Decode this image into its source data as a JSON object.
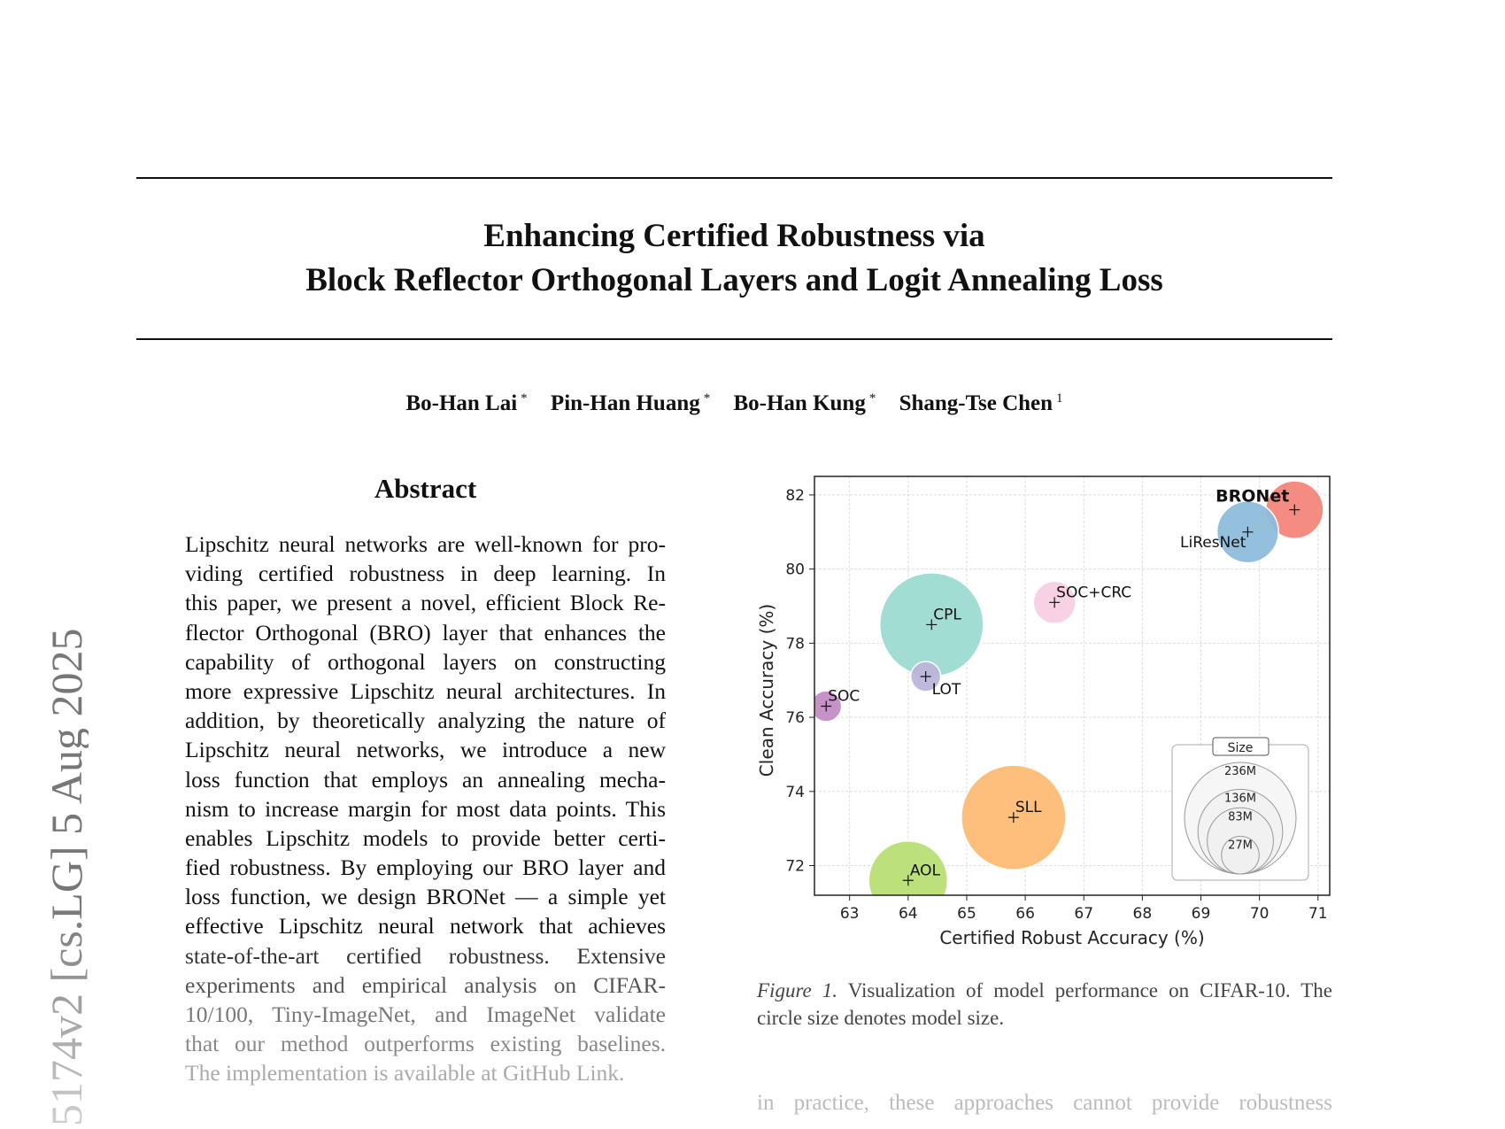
{
  "title": {
    "line1": "Enhancing Certified Robustness via",
    "line2": "Block Reflector Orthogonal Layers and Logit Annealing Loss"
  },
  "authors": [
    {
      "name": "Bo-Han Lai",
      "mark": "*"
    },
    {
      "name": "Pin-Han Huang",
      "mark": "*"
    },
    {
      "name": "Bo-Han Kung",
      "mark": "*"
    },
    {
      "name": "Shang-Tse Chen",
      "mark": "1"
    }
  ],
  "arxiv_stamp": "5174v2  [cs.LG]  5 Aug 2025",
  "abstract": {
    "heading": "Abstract",
    "lines": [
      "Lipschitz neural networks are well-known for pro-",
      "viding certified robustness in deep learning. In",
      "this paper, we present a novel, efficient Block Re-",
      "flector Orthogonal (BRO) layer that enhances the",
      "capability of orthogonal layers on constructing",
      "more expressive Lipschitz neural architectures. In",
      "addition, by theoretically analyzing the nature of",
      "Lipschitz neural networks, we introduce a new",
      "loss function that employs an annealing mecha-",
      "nism to increase margin for most data points. This",
      "enables Lipschitz models to provide better certi-",
      "fied robustness. By employing our BRO layer and",
      "loss function, we design BRONet — a simple yet",
      "effective Lipschitz neural network that achieves",
      "state-of-the-art certified robustness. Extensive",
      "experiments and empirical analysis on CIFAR-",
      "10/100, Tiny-ImageNet, and ImageNet validate",
      "that our method outperforms existing baselines.",
      "The implementation is available at GitHub Link."
    ]
  },
  "figure": {
    "caption_label": "Figure 1.",
    "caption_text": " Visualization of model performance on CIFAR-10. The circle size denotes model size."
  },
  "body_text_partial": "in practice, these approaches cannot provide robustness",
  "chart_data": {
    "type": "scatter",
    "xlabel": "Certified Robust Accuracy (%)",
    "ylabel": "Clean Accuracy (%)",
    "xlim": [
      62.4,
      71.2
    ],
    "ylim": [
      71.2,
      82.5
    ],
    "xticks": [
      63,
      64,
      65,
      66,
      67,
      68,
      69,
      70,
      71
    ],
    "yticks": [
      72,
      74,
      76,
      78,
      80,
      82
    ],
    "grid": true,
    "points": [
      {
        "name": "BRONet",
        "x": 70.6,
        "y": 81.6,
        "size_M": 63,
        "color": "#f4867b",
        "bold": true
      },
      {
        "name": "LiResNet",
        "x": 69.8,
        "y": 81.0,
        "size_M": 72,
        "color": "#8fbcdc"
      },
      {
        "name": "SOC+CRC",
        "x": 66.5,
        "y": 79.1,
        "size_M": 34,
        "color": "#f9cfe3"
      },
      {
        "name": "CPL",
        "x": 64.4,
        "y": 78.5,
        "size_M": 204,
        "color": "#9ddcd0"
      },
      {
        "name": "LOT",
        "x": 64.3,
        "y": 77.1,
        "size_M": 17,
        "color": "#bcb6da"
      },
      {
        "name": "SOC",
        "x": 62.6,
        "y": 76.3,
        "size_M": 18,
        "color": "#c48dc5"
      },
      {
        "name": "SLL",
        "x": 65.8,
        "y": 73.3,
        "size_M": 207,
        "color": "#fdbc74"
      },
      {
        "name": "AOL",
        "x": 64.0,
        "y": 71.6,
        "size_M": 118,
        "color": "#b9e075"
      }
    ],
    "size_legend": {
      "title": "Size",
      "entries": [
        "236M",
        "136M",
        "83M",
        "27M"
      ],
      "values_M": [
        236,
        136,
        83,
        27
      ],
      "placement": "lower-right"
    }
  }
}
